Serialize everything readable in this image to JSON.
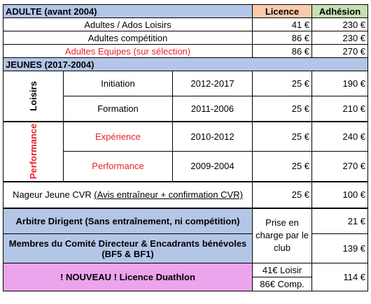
{
  "header": {
    "adult_title": "ADULTE (avant 2004)",
    "licence": "Licence",
    "adhesion": "Adhésion"
  },
  "adult_rows": [
    {
      "label": "Adultes / Ados Loisirs",
      "licence": "41 €",
      "adhesion": "230 €"
    },
    {
      "label": "Adultes compétition",
      "licence": "86 €",
      "adhesion": "230 €"
    },
    {
      "label": "Adultes Equipes (sur sélection)",
      "licence": "86 €",
      "adhesion": "270 €"
    }
  ],
  "youth": {
    "title": "JEUNES (2017-2004)",
    "loisirs_label": "Loisirs",
    "performance_label": "Performance",
    "rows": [
      {
        "name": "Initiation",
        "years": "2012-2017",
        "licence": "25 €",
        "adhesion": "190 €"
      },
      {
        "name": "Formation",
        "years": "2011-2006",
        "licence": "25 €",
        "adhesion": "210 €"
      },
      {
        "name": "Expérience",
        "years": "2010-2012",
        "licence": "25 €",
        "adhesion": "240 €"
      },
      {
        "name": "Performance",
        "years": "2009-2004",
        "licence": "25 €",
        "adhesion": "270 €"
      }
    ],
    "cvr": {
      "label_prefix": "Nageur Jeune CVR ",
      "label_note": "(Avis entraîneur + confirmation CVR)",
      "licence": "25 €",
      "adhesion": "100 €"
    }
  },
  "officials": {
    "arbitre": "Arbitre Dirigent (Sans entraînement, ni compétition)",
    "arbitre_adhesion": "21 €",
    "club_note": "Prise en charge par le club",
    "membres_line1": "Membres du Comité Directeur & Encadrants bénévoles",
    "membres_line2": "(BF5 & BF1)",
    "membres_adhesion": "139 €"
  },
  "duathlon": {
    "label": "! NOUVEAU ! Licence Duathlon",
    "licence_loisir": "41€ Loisir",
    "licence_comp": "86€ Comp.",
    "adhesion": "114 €"
  }
}
